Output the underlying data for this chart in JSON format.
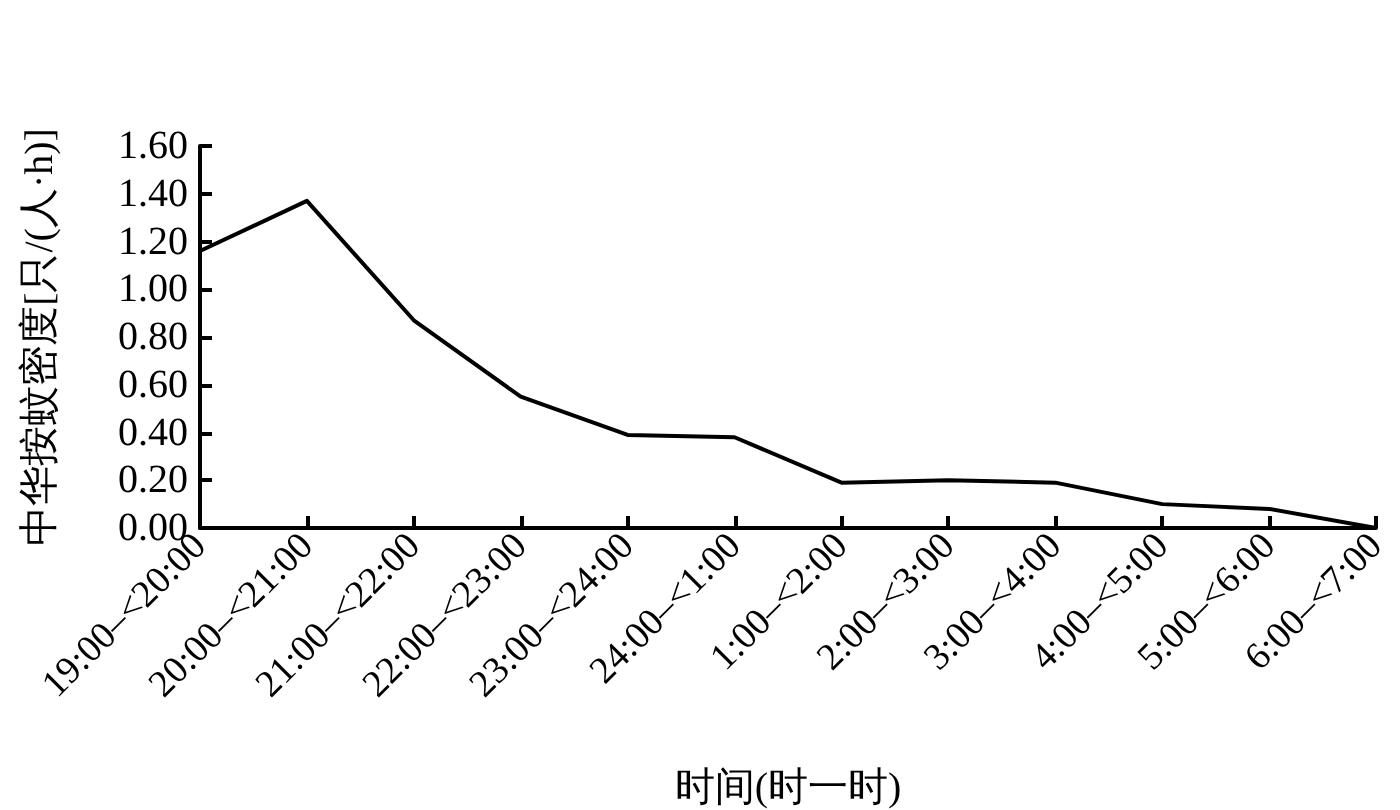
{
  "chart_data": {
    "type": "line",
    "xlabel": "时间(时一时)",
    "ylabel": "中华按蚊密度[只/(人·h)]",
    "categories": [
      "19:00–<20:00",
      "20:00–<21:00",
      "21:00–<22:00",
      "22:00–<23:00",
      "23:00–<24:00",
      "24:00–<1:00",
      "1:00–<2:00",
      "2:00–<3:00",
      "3:00–<4:00",
      "4:00–<5:00",
      "5:00–<6:00",
      "6:00–<7:00"
    ],
    "values": [
      1.16,
      1.37,
      0.87,
      0.55,
      0.39,
      0.38,
      0.19,
      0.2,
      0.19,
      0.1,
      0.08,
      0.0
    ],
    "color": "#000000",
    "ylim": [
      0,
      1.6
    ],
    "yticks": [
      {
        "value": 0,
        "label": "0.00"
      },
      {
        "value": 0.2,
        "label": "0.20"
      },
      {
        "value": 0.4,
        "label": "0.40"
      },
      {
        "value": 0.6,
        "label": "0.60"
      },
      {
        "value": 0.8,
        "label": "0.80"
      },
      {
        "value": 1.0,
        "label": "1.00"
      },
      {
        "value": 1.2,
        "label": "1.20"
      },
      {
        "value": 1.4,
        "label": "1.40"
      },
      {
        "value": 1.6,
        "label": "1.60"
      }
    ],
    "grid": false,
    "marker": "none",
    "line_style": "solid"
  }
}
